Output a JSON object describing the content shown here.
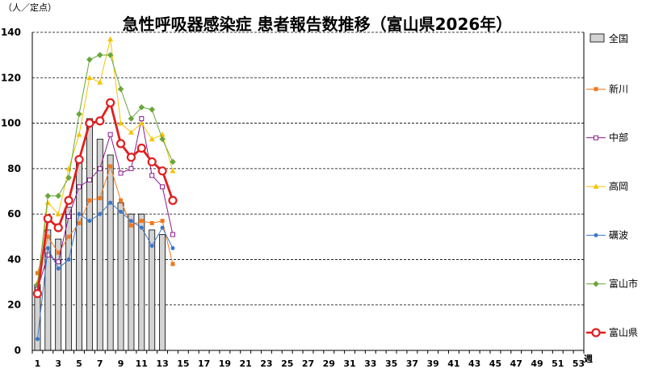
{
  "chart_data": {
    "type": "bar+line",
    "title": "急性呼吸器感染症 患者報告数推移（富山県2026年）",
    "ylabel": "（人／定点）",
    "xlabel": "週",
    "ylim": [
      0,
      140
    ],
    "yticks": [
      0,
      20,
      40,
      60,
      80,
      100,
      120,
      140
    ],
    "xlim": [
      1,
      53
    ],
    "xticks": [
      1,
      3,
      5,
      7,
      9,
      11,
      13,
      15,
      17,
      19,
      21,
      23,
      25,
      27,
      29,
      31,
      33,
      35,
      37,
      39,
      41,
      43,
      45,
      47,
      49,
      51,
      53
    ],
    "grid": "horizontal dashed",
    "legend_position": "right",
    "bar_series": {
      "name": "全国",
      "color": "#d3d3d3",
      "x": [
        1,
        2,
        3,
        4,
        5,
        6,
        7,
        8,
        9,
        10,
        11,
        12,
        13
      ],
      "values": [
        29,
        53,
        49,
        63,
        83,
        102,
        93,
        86,
        65,
        60,
        60,
        53,
        51
      ]
    },
    "series": [
      {
        "name": "新川",
        "color": "#f07820",
        "marker": "square",
        "x": [
          1,
          2,
          3,
          4,
          5,
          6,
          7,
          8,
          9,
          10,
          11,
          12,
          13,
          14
        ],
        "values": [
          34,
          50,
          43,
          50,
          56,
          66,
          67,
          81,
          66,
          55,
          57,
          56,
          57,
          38
        ]
      },
      {
        "name": "中部",
        "color": "#8b1a8b",
        "marker": "open-square",
        "x": [
          1,
          2,
          3,
          4,
          5,
          6,
          7,
          8,
          9,
          10,
          11,
          12,
          13,
          14
        ],
        "values": [
          27,
          42,
          39,
          59,
          72,
          75,
          80,
          95,
          78,
          80,
          102,
          77,
          72,
          51
        ]
      },
      {
        "name": "高岡",
        "color": "#f5c400",
        "marker": "triangle",
        "x": [
          1,
          2,
          3,
          4,
          5,
          6,
          7,
          8,
          9,
          10,
          11,
          12,
          13,
          14
        ],
        "values": [
          30,
          65,
          60,
          80,
          95,
          120,
          118,
          137,
          100,
          96,
          100,
          93,
          95,
          79
        ]
      },
      {
        "name": "礪波",
        "color": "#3a78c8",
        "marker": "circle",
        "x": [
          1,
          2,
          3,
          4,
          5,
          6,
          7,
          8,
          9,
          10,
          11,
          12,
          13,
          14
        ],
        "values": [
          5,
          45,
          36,
          40,
          60,
          57,
          60,
          65,
          61,
          57,
          54,
          46,
          54,
          45
        ]
      },
      {
        "name": "富山市",
        "color": "#6aa63a",
        "marker": "diamond",
        "x": [
          1,
          2,
          3,
          4,
          5,
          6,
          7,
          8,
          9,
          10,
          11,
          12,
          13,
          14
        ],
        "values": [
          29,
          68,
          68,
          76,
          104,
          128,
          130,
          130,
          115,
          102,
          107,
          106,
          93,
          83
        ]
      },
      {
        "name": "富山県",
        "color": "#e02020",
        "marker": "big-open-circle",
        "x": [
          1,
          2,
          3,
          4,
          5,
          6,
          7,
          8,
          9,
          10,
          11,
          12,
          13,
          14
        ],
        "values": [
          25,
          58,
          54,
          66,
          84,
          100,
          101,
          109,
          91,
          85,
          89,
          83,
          79,
          66
        ]
      }
    ]
  }
}
